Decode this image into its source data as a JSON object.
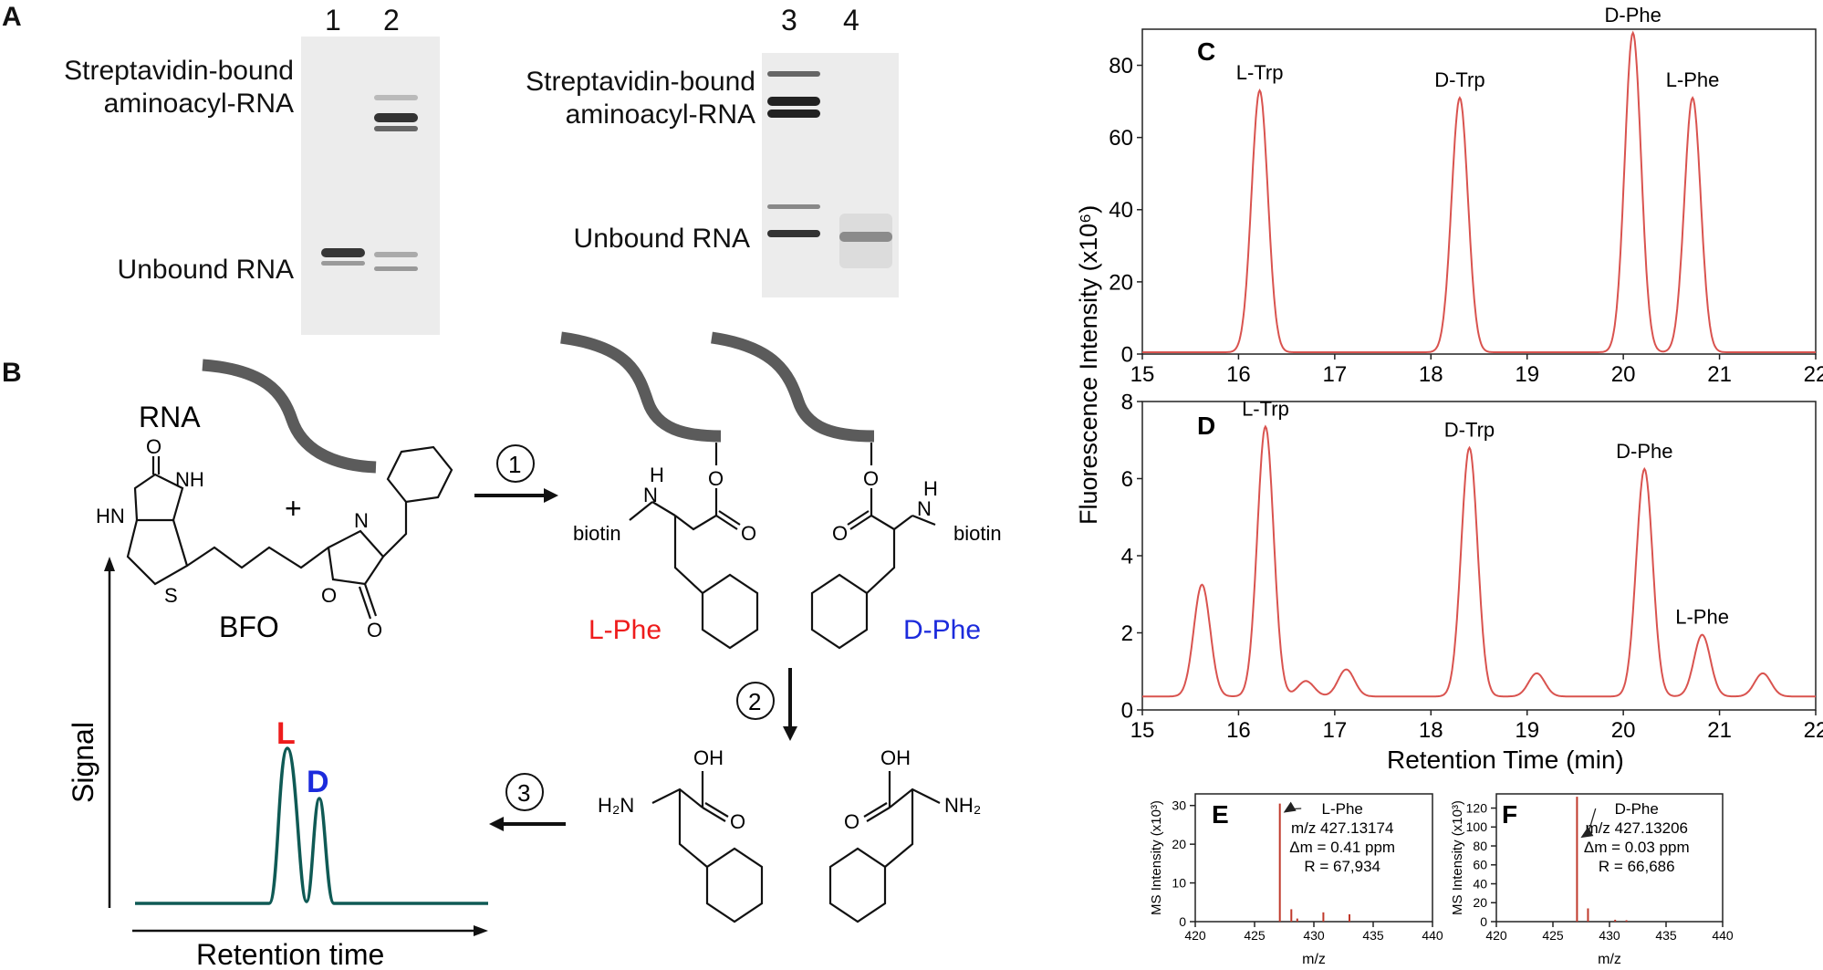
{
  "panels": {
    "A": "A",
    "B": "B",
    "C": "C",
    "D": "D",
    "E": "E",
    "F": "F"
  },
  "gels": {
    "left": {
      "lanes": [
        "1",
        "2"
      ],
      "bound_label_1": "Streptavidin-bound",
      "bound_label_2": "aminoacyl-RNA",
      "unbound_label": "Unbound RNA"
    },
    "right": {
      "lanes": [
        "3",
        "4"
      ],
      "bound_label_1": "Streptavidin-bound",
      "bound_label_2": "aminoacyl-RNA",
      "unbound_label": "Unbound RNA"
    }
  },
  "scheme": {
    "rna_label": "RNA",
    "plus": "+",
    "reagent_label": "BFO",
    "step1": "1",
    "step2": "2",
    "step3": "3",
    "biotin": "biotin",
    "nh": "N",
    "h": "H",
    "o": "O",
    "s": "S",
    "hn": "HN",
    "nh_ring": "NH",
    "n": "N",
    "oh": "OH",
    "h2n": "H₂N",
    "nh2": "NH₂",
    "l_phe": "L-Phe",
    "d_phe": "D-Phe",
    "l_color": "#ee1c1c",
    "d_color": "#1c2bdc",
    "cartoon": {
      "ylabel": "Signal",
      "xlabel": "Retention time",
      "peak_L": "L",
      "peak_D": "D",
      "line_color": "#0f5a55"
    }
  },
  "chart_data": [
    {
      "type": "line",
      "panel": "C",
      "xlabel": "",
      "ylabel": "Fluorescence Intensity (x10⁶)",
      "xlim": [
        15,
        22
      ],
      "ylim": [
        0,
        90
      ],
      "xticks": [
        15,
        16,
        17,
        18,
        19,
        20,
        21,
        22
      ],
      "yticks": [
        0,
        20,
        40,
        60,
        80
      ],
      "color": "#d9534f",
      "peaks": [
        {
          "label": "L-Trp",
          "x": 16.22,
          "y": 73
        },
        {
          "label": "D-Trp",
          "x": 18.3,
          "y": 71
        },
        {
          "label": "D-Phe",
          "x": 20.1,
          "y": 89
        },
        {
          "label": "L-Phe",
          "x": 20.72,
          "y": 71
        }
      ],
      "baseline": 0.5
    },
    {
      "type": "line",
      "panel": "D",
      "xlabel": "Retention Time (min)",
      "ylabel": "Fluorescence Intensity (x10⁶)",
      "xlim": [
        15,
        22
      ],
      "ylim": [
        0,
        8
      ],
      "xticks": [
        15,
        16,
        17,
        18,
        19,
        20,
        21,
        22
      ],
      "yticks": [
        0,
        2,
        4,
        6,
        8
      ],
      "color": "#d9534f",
      "peaks": [
        {
          "label": "",
          "x": 15.62,
          "y": 3.25
        },
        {
          "label": "L-Trp",
          "x": 16.28,
          "y": 7.35
        },
        {
          "label": "",
          "x": 16.7,
          "y": 0.75
        },
        {
          "label": "",
          "x": 17.12,
          "y": 1.05
        },
        {
          "label": "D-Trp",
          "x": 18.4,
          "y": 6.8
        },
        {
          "label": "",
          "x": 19.1,
          "y": 0.95
        },
        {
          "label": "D-Phe",
          "x": 20.22,
          "y": 6.25
        },
        {
          "label": "L-Phe",
          "x": 20.82,
          "y": 1.95
        },
        {
          "label": "",
          "x": 21.45,
          "y": 0.95
        }
      ],
      "baseline": 0.35
    },
    {
      "type": "bar",
      "panel": "E",
      "xlabel": "m/z",
      "ylabel": "MS Intensity (x10³)",
      "xlim": [
        420,
        440
      ],
      "ylim": [
        0,
        33
      ],
      "xticks": [
        420,
        425,
        430,
        435,
        440
      ],
      "yticks": [
        0,
        10,
        20,
        30
      ],
      "color": "#c0392b",
      "x": [
        427.13,
        428.1,
        430.8,
        433.0,
        428.6
      ],
      "values": [
        30.5,
        3.2,
        2.4,
        1.9,
        0.8
      ],
      "annotation": [
        "L-Phe",
        "m/z 427.13174",
        "Δm = 0.41 ppm",
        "R = 67,934"
      ]
    },
    {
      "type": "bar",
      "panel": "F",
      "xlabel": "m/z",
      "ylabel": "MS Intensity (x10³)",
      "xlim": [
        420,
        440
      ],
      "ylim": [
        0,
        135
      ],
      "xticks": [
        420,
        425,
        430,
        435,
        440
      ],
      "yticks": [
        0,
        20,
        40,
        60,
        80,
        100,
        120
      ],
      "color": "#c0392b",
      "x": [
        427.13,
        428.1,
        430.5,
        431.5
      ],
      "values": [
        132,
        14,
        2,
        1.5
      ],
      "annotation": [
        "D-Phe",
        "m/z 427.13206",
        "Δm = 0.03 ppm",
        "R = 66,686"
      ]
    }
  ]
}
